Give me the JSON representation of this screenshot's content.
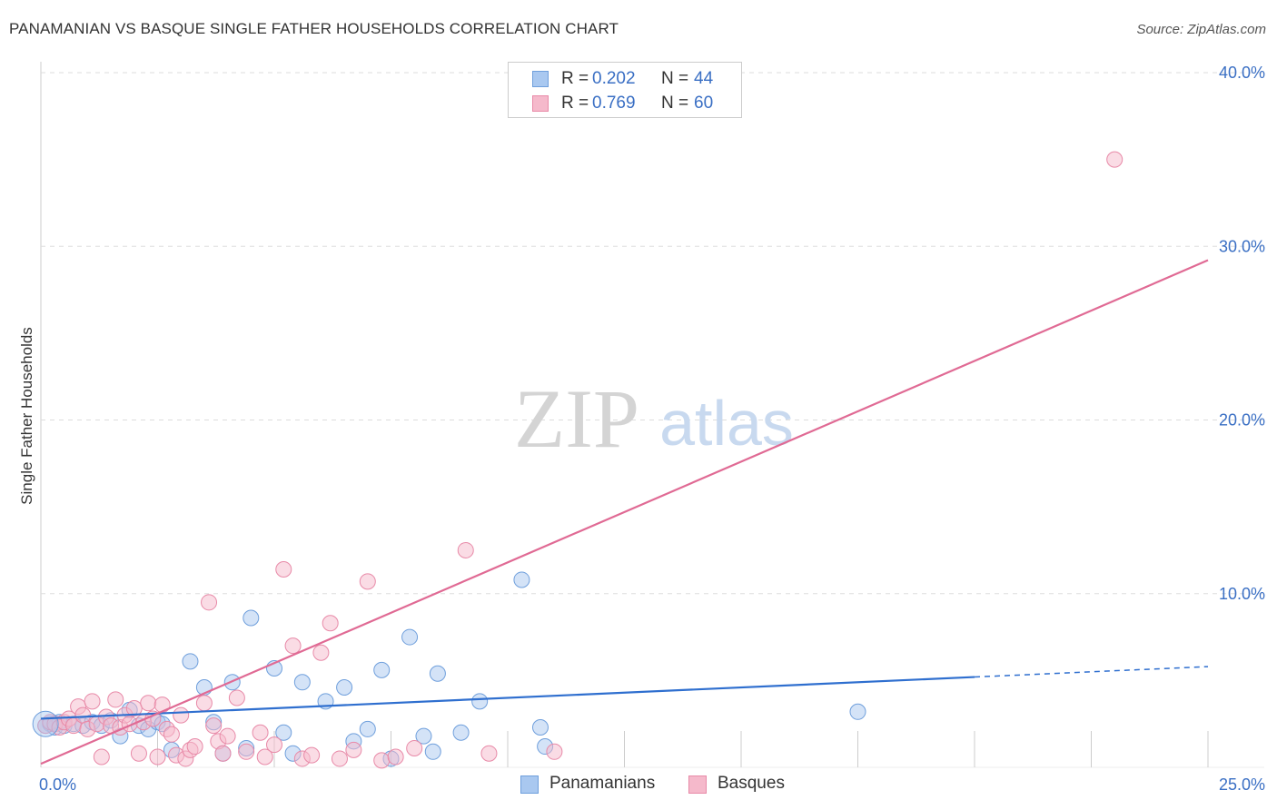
{
  "title": "PANAMANIAN VS BASQUE SINGLE FATHER HOUSEHOLDS CORRELATION CHART",
  "source": "Source: ZipAtlas.com",
  "watermark": {
    "zip": "ZIP",
    "atlas": "atlas"
  },
  "legend": {
    "rows": [
      {
        "r_label": "R =",
        "r_value": "0.202",
        "n_label": "N =",
        "n_value": "44"
      },
      {
        "r_label": "R =",
        "r_value": "0.769",
        "n_label": "N =",
        "n_value": "60"
      }
    ]
  },
  "bottom_legend": {
    "panamanians": "Panamanians",
    "basques": "Basques"
  },
  "colors": {
    "blue_fill": "#a9c8f0",
    "blue_stroke": "#6f9fdc",
    "blue_line": "#2f6fcf",
    "pink_fill": "#f5b9cb",
    "pink_stroke": "#e88aa8",
    "pink_line": "#e06a94",
    "tick_text": "#3a6fc4",
    "grid": "#dddddd"
  },
  "chart_data": {
    "type": "scatter",
    "title": "PANAMANIAN VS BASQUE SINGLE FATHER HOUSEHOLDS CORRELATION CHART",
    "xlabel": "",
    "ylabel": "Single Father Households",
    "xlim": [
      0,
      25
    ],
    "ylim": [
      0,
      40
    ],
    "x_tick_labels": [
      {
        "value": 0,
        "label": "0.0%"
      },
      {
        "value": 25,
        "label": "25.0%"
      }
    ],
    "y_tick_labels": [
      {
        "value": 10,
        "label": "10.0%"
      },
      {
        "value": 20,
        "label": "20.0%"
      },
      {
        "value": 30,
        "label": "30.0%"
      },
      {
        "value": 40,
        "label": "40.0%"
      }
    ],
    "series": [
      {
        "name": "Panamanians",
        "color": "blue",
        "R": 0.202,
        "N": 44,
        "trendline": {
          "x0": 0,
          "y0": 2.8,
          "x1": 20,
          "y1": 5.2,
          "dashed_to_x": 25,
          "dashed_to_y": 5.8
        },
        "points": [
          [
            0.1,
            2.4
          ],
          [
            0.2,
            2.5
          ],
          [
            0.3,
            2.3
          ],
          [
            0.4,
            2.6
          ],
          [
            0.5,
            2.4
          ],
          [
            0.7,
            2.5
          ],
          [
            0.9,
            2.4
          ],
          [
            1.1,
            2.6
          ],
          [
            1.3,
            2.4
          ],
          [
            1.5,
            2.7
          ],
          [
            1.7,
            1.8
          ],
          [
            1.9,
            3.3
          ],
          [
            2.1,
            2.4
          ],
          [
            2.3,
            2.2
          ],
          [
            2.5,
            2.6
          ],
          [
            2.6,
            2.5
          ],
          [
            2.8,
            1.0
          ],
          [
            3.2,
            6.1
          ],
          [
            3.5,
            4.6
          ],
          [
            3.7,
            2.6
          ],
          [
            3.9,
            0.8
          ],
          [
            4.1,
            4.9
          ],
          [
            4.4,
            1.1
          ],
          [
            4.5,
            8.6
          ],
          [
            5.0,
            5.7
          ],
          [
            5.2,
            2.0
          ],
          [
            5.4,
            0.8
          ],
          [
            5.6,
            4.9
          ],
          [
            6.1,
            3.8
          ],
          [
            6.5,
            4.6
          ],
          [
            6.7,
            1.5
          ],
          [
            7.0,
            2.2
          ],
          [
            7.3,
            5.6
          ],
          [
            7.5,
            0.5
          ],
          [
            7.9,
            7.5
          ],
          [
            8.2,
            1.8
          ],
          [
            8.4,
            0.9
          ],
          [
            8.5,
            5.4
          ],
          [
            9.0,
            2.0
          ],
          [
            9.4,
            3.8
          ],
          [
            10.3,
            10.8
          ],
          [
            10.7,
            2.3
          ],
          [
            10.8,
            1.2
          ],
          [
            17.5,
            3.2
          ]
        ]
      },
      {
        "name": "Basques",
        "color": "pink",
        "R": 0.769,
        "N": 60,
        "trendline": {
          "x0": 0,
          "y0": 0.2,
          "x1": 25,
          "y1": 29.2
        },
        "points": [
          [
            0.1,
            2.4
          ],
          [
            0.2,
            2.6
          ],
          [
            0.3,
            2.5
          ],
          [
            0.4,
            2.3
          ],
          [
            0.5,
            2.6
          ],
          [
            0.6,
            2.8
          ],
          [
            0.7,
            2.4
          ],
          [
            0.8,
            3.5
          ],
          [
            0.9,
            3.0
          ],
          [
            1.0,
            2.2
          ],
          [
            1.1,
            3.8
          ],
          [
            1.2,
            2.5
          ],
          [
            1.3,
            0.6
          ],
          [
            1.4,
            2.9
          ],
          [
            1.5,
            2.4
          ],
          [
            1.6,
            3.9
          ],
          [
            1.7,
            2.3
          ],
          [
            1.8,
            3.0
          ],
          [
            1.9,
            2.5
          ],
          [
            2.0,
            3.4
          ],
          [
            2.1,
            0.8
          ],
          [
            2.2,
            2.6
          ],
          [
            2.3,
            3.7
          ],
          [
            2.4,
            2.8
          ],
          [
            2.5,
            0.6
          ],
          [
            2.6,
            3.6
          ],
          [
            2.7,
            2.2
          ],
          [
            2.8,
            1.9
          ],
          [
            2.9,
            0.7
          ],
          [
            3.0,
            3.0
          ],
          [
            3.1,
            0.5
          ],
          [
            3.2,
            1.0
          ],
          [
            3.3,
            1.2
          ],
          [
            3.5,
            3.7
          ],
          [
            3.6,
            9.5
          ],
          [
            3.7,
            2.4
          ],
          [
            3.8,
            1.5
          ],
          [
            3.9,
            0.8
          ],
          [
            4.0,
            1.8
          ],
          [
            4.2,
            4.0
          ],
          [
            4.4,
            0.9
          ],
          [
            4.7,
            2.0
          ],
          [
            4.8,
            0.6
          ],
          [
            5.0,
            1.3
          ],
          [
            5.2,
            11.4
          ],
          [
            5.4,
            7.0
          ],
          [
            5.6,
            0.5
          ],
          [
            5.8,
            0.7
          ],
          [
            6.0,
            6.6
          ],
          [
            6.2,
            8.3
          ],
          [
            6.4,
            0.5
          ],
          [
            6.7,
            1.0
          ],
          [
            7.0,
            10.7
          ],
          [
            7.3,
            0.4
          ],
          [
            7.6,
            0.6
          ],
          [
            8.0,
            1.1
          ],
          [
            9.1,
            12.5
          ],
          [
            9.6,
            0.8
          ],
          [
            11.0,
            0.9
          ],
          [
            23.0,
            35.0
          ]
        ]
      }
    ]
  }
}
